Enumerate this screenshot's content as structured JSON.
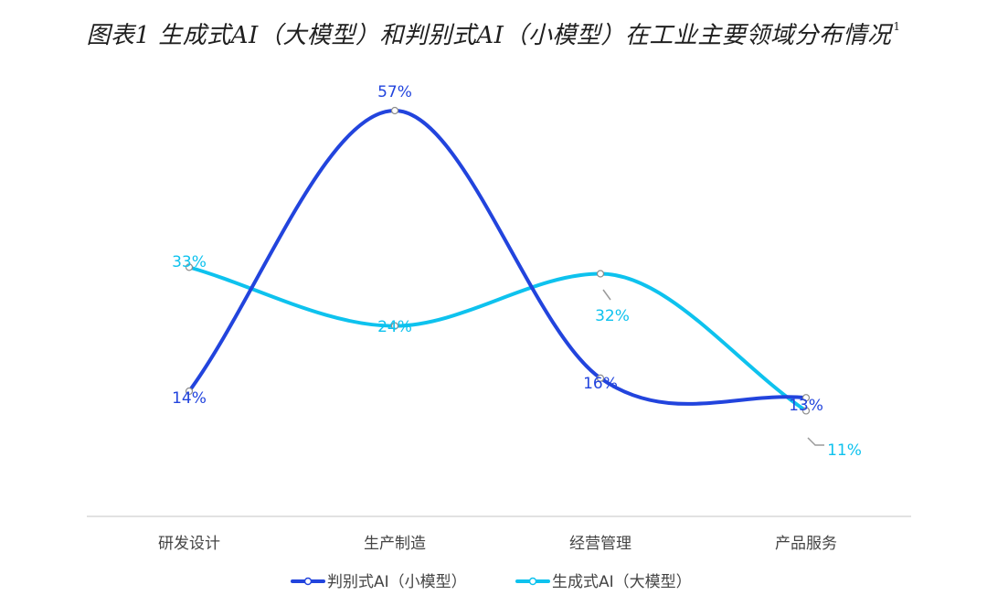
{
  "chart_data": {
    "type": "line",
    "title": "图表1 生成式AI（大模型）和判别式AI（小模型）在工业主要领域分布情况",
    "title_footnote": "1",
    "categories": [
      "研发设计",
      "生产制造",
      "经营管理",
      "产品服务"
    ],
    "series": [
      {
        "name": "判别式AI（小模型）",
        "values": [
          14,
          57,
          16,
          13
        ],
        "labels": [
          "14%",
          "57%",
          "16%",
          "13%"
        ],
        "color": "#2244dd"
      },
      {
        "name": "生成式AI（大模型）",
        "values": [
          33,
          24,
          32,
          11
        ],
        "labels": [
          "33%",
          "24%",
          "32%",
          "11%"
        ],
        "color": "#0ec2ee"
      }
    ],
    "ylim": [
      0,
      60
    ],
    "smooth": true,
    "grid": false,
    "legend_position": "bottom",
    "xlabel": "",
    "ylabel": ""
  }
}
